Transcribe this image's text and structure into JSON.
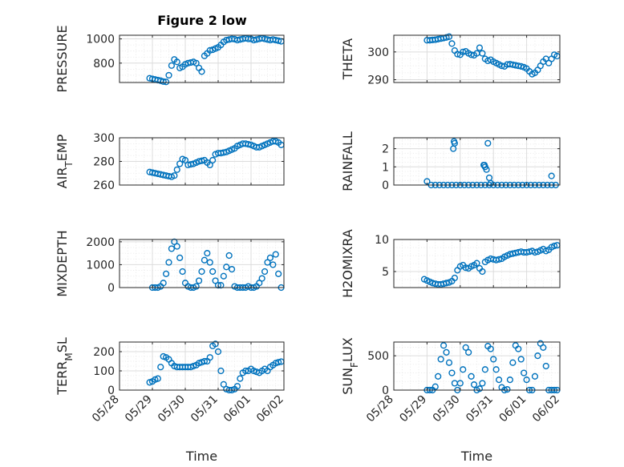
{
  "figure_title": "Figure 2 low",
  "x_axis": {
    "label": "Time",
    "tick_labels": [
      "05/28",
      "05/29",
      "05/30",
      "05/31",
      "06/01",
      "06/02"
    ],
    "range": [
      "05/28",
      "06/02"
    ]
  },
  "colors": {
    "marker": "#0072bd",
    "axes": "#262626",
    "grid": "#dcdcdc"
  },
  "chart_data": [
    {
      "type": "scatter",
      "title": "Figure 2 low",
      "ylabel": "PRESSURE",
      "ylim": [
        640,
        1030
      ],
      "yticks": [
        800,
        1000
      ],
      "x": [
        "05/28 22:00",
        "05/29 00:00",
        "05/29 02:00",
        "05/29 04:00",
        "05/29 06:00",
        "05/29 08:00",
        "05/29 10:00",
        "05/29 12:00",
        "05/29 14:00",
        "05/29 16:00",
        "05/29 18:00",
        "05/29 20:00",
        "05/29 22:00",
        "05/30 00:00",
        "05/30 02:00",
        "05/30 04:00",
        "05/30 06:00",
        "05/30 08:00",
        "05/30 10:00",
        "05/30 12:00",
        "05/30 14:00",
        "05/30 16:00",
        "05/30 18:00",
        "05/30 20:00",
        "05/30 22:00",
        "05/31 00:00",
        "05/31 02:00",
        "05/31 04:00",
        "05/31 06:00",
        "05/31 08:00",
        "05/31 10:00",
        "05/31 12:00",
        "05/31 14:00",
        "05/31 16:00",
        "05/31 18:00",
        "05/31 20:00",
        "05/31 22:00",
        "06/01 00:00",
        "06/01 02:00",
        "06/01 04:00",
        "06/01 06:00",
        "06/01 08:00",
        "06/01 10:00",
        "06/01 12:00",
        "06/01 14:00",
        "06/01 16:00",
        "06/01 18:00",
        "06/01 20:00",
        "06/01 22:00"
      ],
      "y": [
        675,
        670,
        665,
        660,
        655,
        648,
        645,
        700,
        780,
        830,
        810,
        760,
        770,
        790,
        800,
        805,
        810,
        800,
        760,
        730,
        860,
        880,
        905,
        910,
        920,
        930,
        950,
        975,
        990,
        995,
        1000,
        998,
        990,
        995,
        1000,
        1005,
        1000,
        1000,
        990,
        995,
        1000,
        1005,
        1000,
        995,
        990,
        995,
        990,
        985,
        980
      ]
    },
    {
      "type": "scatter",
      "ylabel": "THETA",
      "ylim": [
        289,
        306
      ],
      "yticks": [
        290,
        300
      ],
      "x": [
        "05/29 00:00",
        "05/29 02:00",
        "05/29 04:00",
        "05/29 06:00",
        "05/29 08:00",
        "05/29 10:00",
        "05/29 12:00",
        "05/29 14:00",
        "05/29 16:00",
        "05/29 18:00",
        "05/29 20:00",
        "05/29 22:00",
        "05/30 00:00",
        "05/30 02:00",
        "05/30 04:00",
        "05/30 06:00",
        "05/30 08:00",
        "05/30 10:00",
        "05/30 12:00",
        "05/30 14:00",
        "05/30 16:00",
        "05/30 18:00",
        "05/30 20:00",
        "05/30 22:00",
        "05/31 00:00",
        "05/31 02:00",
        "05/31 04:00",
        "05/31 06:00",
        "05/31 08:00",
        "05/31 10:00",
        "05/31 12:00",
        "05/31 14:00",
        "05/31 16:00",
        "05/31 18:00",
        "05/31 20:00",
        "05/31 22:00",
        "06/01 00:00",
        "06/01 02:00",
        "06/01 04:00",
        "06/01 06:00",
        "06/01 08:00",
        "06/01 10:00",
        "06/01 12:00",
        "06/01 14:00",
        "06/01 16:00",
        "06/01 18:00",
        "06/01 20:00",
        "06/01 22:00"
      ],
      "y": [
        304.2,
        304.2,
        304.3,
        304.4,
        304.6,
        304.8,
        305.0,
        305.2,
        305.5,
        303.0,
        300.5,
        299.2,
        299.0,
        300.0,
        300.2,
        299.5,
        299.0,
        298.8,
        299.5,
        301.5,
        299.5,
        297.5,
        296.8,
        297.2,
        296.5,
        296.0,
        295.5,
        295.0,
        294.8,
        295.5,
        295.6,
        295.4,
        295.2,
        295.0,
        294.8,
        294.5,
        294.0,
        293.0,
        292.0,
        292.5,
        293.5,
        295.0,
        296.5,
        297.5,
        296.0,
        297.5,
        299.0,
        298.5
      ]
    },
    {
      "type": "scatter",
      "ylabel": "AIR_TEMP",
      "ylim": [
        260,
        300
      ],
      "yticks": [
        260,
        280,
        300
      ],
      "x": [
        "05/28 22:00",
        "05/29 00:00",
        "05/29 02:00",
        "05/29 04:00",
        "05/29 06:00",
        "05/29 08:00",
        "05/29 10:00",
        "05/29 12:00",
        "05/29 14:00",
        "05/29 16:00",
        "05/29 18:00",
        "05/29 20:00",
        "05/29 22:00",
        "05/30 00:00",
        "05/30 02:00",
        "05/30 04:00",
        "05/30 06:00",
        "05/30 08:00",
        "05/30 10:00",
        "05/30 12:00",
        "05/30 14:00",
        "05/30 16:00",
        "05/30 18:00",
        "05/30 20:00",
        "05/30 22:00",
        "05/31 00:00",
        "05/31 02:00",
        "05/31 04:00",
        "05/31 06:00",
        "05/31 08:00",
        "05/31 10:00",
        "05/31 12:00",
        "05/31 14:00",
        "05/31 16:00",
        "05/31 18:00",
        "05/31 20:00",
        "05/31 22:00",
        "06/01 00:00",
        "06/01 02:00",
        "06/01 04:00",
        "06/01 06:00",
        "06/01 08:00",
        "06/01 10:00",
        "06/01 12:00",
        "06/01 14:00",
        "06/01 16:00",
        "06/01 18:00",
        "06/01 20:00",
        "06/01 22:00"
      ],
      "y": [
        271,
        270.5,
        270,
        269.5,
        269,
        268.5,
        268,
        267.5,
        267,
        268,
        273,
        278,
        282,
        281,
        277,
        277.5,
        278,
        279,
        280,
        280.5,
        281,
        279,
        277,
        281,
        286,
        287,
        287,
        287.5,
        288,
        289,
        290,
        291,
        293,
        294,
        295,
        295,
        294.5,
        294,
        293,
        292,
        292,
        293,
        294,
        295,
        296,
        297,
        297,
        296,
        294
      ]
    },
    {
      "type": "scatter",
      "ylabel": "RAINFALL",
      "ylim": [
        0,
        2.6
      ],
      "yticks": [
        0,
        1,
        2
      ],
      "x": [
        "05/29 00:00",
        "05/29 03:00",
        "05/29 06:00",
        "05/29 09:00",
        "05/29 12:00",
        "05/29 15:00",
        "05/29 18:00",
        "05/29 21:00",
        "05/30 00:00",
        "05/30 03:00",
        "05/30 06:00",
        "05/30 09:00",
        "05/30 12:00",
        "05/30 15:00",
        "05/30 18:00",
        "05/30 21:00",
        "05/31 00:00",
        "05/31 03:00",
        "05/31 06:00",
        "05/31 09:00",
        "05/31 12:00",
        "05/31 15:00",
        "05/31 18:00",
        "05/31 21:00",
        "06/01 00:00",
        "06/01 03:00",
        "06/01 06:00",
        "06/01 09:00",
        "06/01 12:00",
        "06/01 15:00",
        "06/01 18:00",
        "06/01 21:00",
        "05/29 19:00",
        "05/29 19:30",
        "05/29 20:00",
        "05/30 17:00",
        "05/30 17:30",
        "05/30 18:00",
        "05/30 19:00",
        "05/30 20:00",
        "05/30 21:00",
        "05/30 22:00",
        "06/01 18:00"
      ],
      "y": [
        0.2,
        0,
        0,
        0,
        0,
        0,
        0,
        0,
        0,
        0,
        0,
        0,
        0,
        0,
        0,
        0,
        0,
        0,
        0,
        0,
        0,
        0,
        0,
        0,
        0,
        0,
        0,
        0,
        0,
        0,
        0,
        0,
        2.0,
        2.4,
        2.3,
        1.1,
        1.1,
        1.0,
        0.85,
        2.3,
        0.4,
        0.1,
        0.5
      ]
    },
    {
      "type": "scatter",
      "ylabel": "MIXDEPTH",
      "ylim": [
        0,
        2100
      ],
      "yticks": [
        0,
        1000,
        2000
      ],
      "x": [
        "05/29 00:00",
        "05/29 02:00",
        "05/29 04:00",
        "05/29 06:00",
        "05/29 08:00",
        "05/29 10:00",
        "05/29 12:00",
        "05/29 14:00",
        "05/29 16:00",
        "05/29 18:00",
        "05/29 20:00",
        "05/29 22:00",
        "05/30 00:00",
        "05/30 02:00",
        "05/30 04:00",
        "05/30 06:00",
        "05/30 08:00",
        "05/30 10:00",
        "05/30 12:00",
        "05/30 14:00",
        "05/30 16:00",
        "05/30 18:00",
        "05/30 20:00",
        "05/30 22:00",
        "05/31 00:00",
        "05/31 02:00",
        "05/31 04:00",
        "05/31 06:00",
        "05/31 08:00",
        "05/31 10:00",
        "05/31 12:00",
        "05/31 14:00",
        "05/31 16:00",
        "05/31 18:00",
        "05/31 20:00",
        "05/31 22:00",
        "06/01 00:00",
        "06/01 02:00",
        "06/01 04:00",
        "06/01 06:00",
        "06/01 08:00",
        "06/01 10:00",
        "06/01 12:00",
        "06/01 14:00",
        "06/01 16:00",
        "06/01 18:00",
        "06/01 20:00",
        "06/01 22:00"
      ],
      "y": [
        0,
        0,
        0,
        50,
        200,
        600,
        1100,
        1700,
        2000,
        1800,
        1300,
        700,
        200,
        50,
        0,
        0,
        50,
        300,
        700,
        1200,
        1500,
        1100,
        700,
        300,
        100,
        100,
        500,
        900,
        1400,
        800,
        50,
        0,
        0,
        0,
        0,
        50,
        0,
        0,
        50,
        200,
        400,
        700,
        1100,
        1300,
        1000,
        1450,
        600,
        0
      ]
    },
    {
      "type": "scatter",
      "ylabel": "H2OMIXRA",
      "ylim": [
        2.5,
        10
      ],
      "yticks": [
        5,
        10
      ],
      "x": [
        "05/28 22:00",
        "05/29 00:00",
        "05/29 02:00",
        "05/29 04:00",
        "05/29 06:00",
        "05/29 08:00",
        "05/29 10:00",
        "05/29 12:00",
        "05/29 14:00",
        "05/29 16:00",
        "05/29 18:00",
        "05/29 20:00",
        "05/29 22:00",
        "05/30 00:00",
        "05/30 02:00",
        "05/30 04:00",
        "05/30 06:00",
        "05/30 08:00",
        "05/30 10:00",
        "05/30 12:00",
        "05/30 14:00",
        "05/30 16:00",
        "05/30 18:00",
        "05/30 20:00",
        "05/30 22:00",
        "05/31 00:00",
        "05/31 02:00",
        "05/31 04:00",
        "05/31 06:00",
        "05/31 08:00",
        "05/31 10:00",
        "05/31 12:00",
        "05/31 14:00",
        "05/31 16:00",
        "05/31 18:00",
        "05/31 20:00",
        "05/31 22:00",
        "06/01 00:00",
        "06/01 02:00",
        "06/01 04:00",
        "06/01 06:00",
        "06/01 08:00",
        "06/01 10:00",
        "06/01 12:00",
        "06/01 14:00",
        "06/01 16:00",
        "06/01 18:00",
        "06/01 20:00",
        "06/01 22:00"
      ],
      "y": [
        3.8,
        3.6,
        3.4,
        3.2,
        3.1,
        3.0,
        3.0,
        3.1,
        3.2,
        3.3,
        3.5,
        4.0,
        5.2,
        5.8,
        6.0,
        5.6,
        5.5,
        5.8,
        6.0,
        6.3,
        5.5,
        5.0,
        6.5,
        6.8,
        7.0,
        6.9,
        6.8,
        6.9,
        7.0,
        7.3,
        7.5,
        7.7,
        7.8,
        7.9,
        8.0,
        8.1,
        8.0,
        8.0,
        8.1,
        8.2,
        8.0,
        8.1,
        8.3,
        8.5,
        8.2,
        8.4,
        8.8,
        9.0,
        9.1
      ]
    },
    {
      "type": "scatter",
      "ylabel": "TERR_MSL",
      "ylim": [
        0,
        250
      ],
      "yticks": [
        0,
        100,
        200
      ],
      "x": [
        "05/28 22:00",
        "05/29 00:00",
        "05/29 02:00",
        "05/29 04:00",
        "05/29 06:00",
        "05/29 08:00",
        "05/29 10:00",
        "05/29 12:00",
        "05/29 14:00",
        "05/29 16:00",
        "05/29 18:00",
        "05/29 20:00",
        "05/29 22:00",
        "05/30 00:00",
        "05/30 02:00",
        "05/30 04:00",
        "05/30 06:00",
        "05/30 08:00",
        "05/30 10:00",
        "05/30 12:00",
        "05/30 14:00",
        "05/30 16:00",
        "05/30 18:00",
        "05/30 20:00",
        "05/30 22:00",
        "05/31 00:00",
        "05/31 02:00",
        "05/31 04:00",
        "05/31 06:00",
        "05/31 08:00",
        "05/31 10:00",
        "05/31 12:00",
        "05/31 14:00",
        "05/31 16:00",
        "05/31 18:00",
        "05/31 20:00",
        "05/31 22:00",
        "06/01 00:00",
        "06/01 02:00",
        "06/01 04:00",
        "06/01 06:00",
        "06/01 08:00",
        "06/01 10:00",
        "06/01 12:00",
        "06/01 14:00",
        "06/01 16:00",
        "06/01 18:00",
        "06/01 20:00",
        "06/01 22:00"
      ],
      "y": [
        40,
        45,
        55,
        60,
        120,
        175,
        170,
        160,
        140,
        125,
        120,
        120,
        120,
        120,
        120,
        120,
        125,
        130,
        140,
        145,
        150,
        150,
        170,
        230,
        240,
        200,
        100,
        30,
        5,
        0,
        0,
        5,
        20,
        60,
        90,
        100,
        100,
        110,
        100,
        95,
        90,
        100,
        110,
        100,
        120,
        130,
        140,
        145,
        148
      ]
    },
    {
      "type": "scatter",
      "ylabel": "SUN_FLUX",
      "ylim": [
        0,
        700
      ],
      "yticks": [
        0,
        500
      ],
      "x": [
        "05/29 00:00",
        "05/29 02:00",
        "05/29 04:00",
        "05/29 06:00",
        "05/29 08:00",
        "05/29 10:00",
        "05/29 12:00",
        "05/29 14:00",
        "05/29 16:00",
        "05/29 18:00",
        "05/29 20:00",
        "05/29 22:00",
        "05/30 00:00",
        "05/30 02:00",
        "05/30 04:00",
        "05/30 06:00",
        "05/30 08:00",
        "05/30 10:00",
        "05/30 12:00",
        "05/30 14:00",
        "05/30 16:00",
        "05/30 18:00",
        "05/30 20:00",
        "05/30 22:00",
        "05/31 00:00",
        "05/31 02:00",
        "05/31 04:00",
        "05/31 06:00",
        "05/31 08:00",
        "05/31 10:00",
        "05/31 12:00",
        "05/31 14:00",
        "05/31 16:00",
        "05/31 18:00",
        "05/31 20:00",
        "05/31 22:00",
        "06/01 00:00",
        "06/01 02:00",
        "06/01 04:00",
        "06/01 06:00",
        "06/01 08:00",
        "06/01 10:00",
        "06/01 12:00",
        "06/01 14:00",
        "06/01 16:00",
        "06/01 18:00",
        "06/01 20:00",
        "06/01 22:00"
      ],
      "y": [
        0,
        0,
        0,
        50,
        200,
        450,
        650,
        550,
        400,
        250,
        100,
        0,
        100,
        300,
        620,
        550,
        200,
        80,
        0,
        20,
        100,
        300,
        640,
        600,
        450,
        300,
        150,
        40,
        0,
        10,
        150,
        400,
        650,
        600,
        450,
        250,
        150,
        0,
        0,
        200,
        500,
        680,
        620,
        350,
        0,
        0,
        0,
        0
      ]
    }
  ]
}
